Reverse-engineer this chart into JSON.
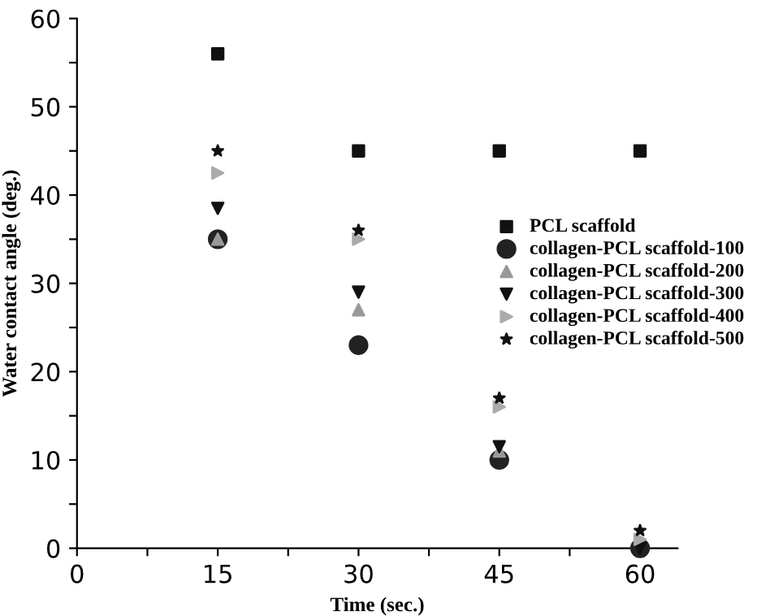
{
  "chart_data": {
    "type": "scatter",
    "xlabel": "Time (sec.)",
    "ylabel": "Water contact angle (deg.)",
    "x": [
      15,
      30,
      45,
      60
    ],
    "series": [
      {
        "name": "PCL scaffold",
        "color": "#111111",
        "marker": "square",
        "values": [
          56,
          45,
          45,
          45
        ]
      },
      {
        "name": "collagen-PCL scaffold-100",
        "color": "#222222",
        "marker": "circle",
        "values": [
          35,
          23,
          10,
          0
        ]
      },
      {
        "name": "collagen-PCL scaffold-200",
        "color": "#999999",
        "marker": "triangle",
        "values": [
          35,
          27,
          11,
          null
        ]
      },
      {
        "name": "collagen-PCL scaffold-300",
        "color": "#111111",
        "marker": "triangle_down",
        "values": [
          38.5,
          29,
          11.5,
          0
        ]
      },
      {
        "name": "collagen-PCL scaffold-400",
        "color": "#aaaaaa",
        "marker": "triangle_right",
        "values": [
          42.5,
          35,
          16,
          1
        ]
      },
      {
        "name": "collagen-PCL scaffold-500",
        "color": "#111111",
        "marker": "star",
        "values": [
          45,
          36,
          17,
          2
        ]
      }
    ],
    "xlim": [
      0,
      64
    ],
    "ylim": [
      0,
      60
    ],
    "xticks": [
      0,
      {
        "value": 7.5,
        "label": null
      },
      15,
      {
        "value": 22.5,
        "label": null
      },
      30,
      {
        "value": 37.5,
        "label": null
      },
      45,
      {
        "value": 52.5,
        "label": null
      },
      60
    ],
    "yticks": [
      0,
      {
        "value": 5,
        "label": null
      },
      10,
      {
        "value": 15,
        "label": null
      },
      20,
      {
        "value": 25,
        "label": null
      },
      30,
      {
        "value": 35,
        "label": null
      },
      40,
      {
        "value": 45,
        "label": null
      },
      50,
      {
        "value": 55,
        "label": null
      },
      60
    ],
    "grid": false,
    "legend": "right"
  }
}
